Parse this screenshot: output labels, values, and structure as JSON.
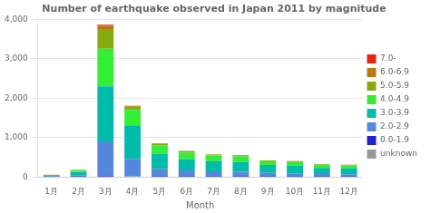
{
  "chart_data": {
    "type": "bar",
    "stacked": true,
    "title": "Number of earthquake observed in Japan 2011 by magnitude",
    "xlabel": "Month",
    "categories": [
      "1月",
      "2月",
      "3月",
      "4月",
      "5月",
      "6月",
      "7月",
      "8月",
      "9月",
      "10月",
      "11月",
      "12月"
    ],
    "series": [
      {
        "name": "unknown",
        "color": "#999999",
        "values": [
          0,
          0,
          0,
          0,
          0,
          0,
          0,
          0,
          0,
          0,
          0,
          0
        ]
      },
      {
        "name": "0.0-1.9",
        "color": "#2222cc",
        "values": [
          3,
          5,
          30,
          10,
          3,
          3,
          3,
          3,
          3,
          3,
          3,
          3
        ]
      },
      {
        "name": "2.0-2.9",
        "color": "#5588dd",
        "values": [
          15,
          40,
          870,
          450,
          200,
          160,
          140,
          130,
          100,
          90,
          70,
          65
        ]
      },
      {
        "name": "3.0-3.9",
        "color": "#00bbaa",
        "values": [
          25,
          80,
          1400,
          850,
          380,
          290,
          260,
          250,
          200,
          195,
          155,
          150
        ]
      },
      {
        "name": "4.0-4.9",
        "color": "#33ee33",
        "values": [
          10,
          35,
          950,
          390,
          220,
          165,
          140,
          140,
          95,
          90,
          80,
          75
        ]
      },
      {
        "name": "5.0-5.9",
        "color": "#88aa11",
        "values": [
          4,
          15,
          500,
          80,
          45,
          35,
          25,
          25,
          18,
          16,
          12,
          12
        ]
      },
      {
        "name": "6.0-6.9",
        "color": "#bb7711",
        "values": [
          1,
          5,
          80,
          20,
          8,
          6,
          6,
          6,
          4,
          4,
          4,
          4
        ]
      },
      {
        "name": "7.0-",
        "color": "#ee2211",
        "values": [
          0,
          1,
          30,
          5,
          2,
          2,
          2,
          2,
          1,
          1,
          0,
          0
        ]
      }
    ],
    "ylim": [
      0,
      4000
    ],
    "yticks": [
      0,
      {
        "value": 1000,
        "label": "1,000"
      },
      {
        "value": 2000,
        "label": "2,000"
      },
      {
        "value": 3000,
        "label": "3,000"
      },
      {
        "value": 4000,
        "label": "4,000"
      }
    ],
    "grid": true,
    "legend": "right"
  }
}
